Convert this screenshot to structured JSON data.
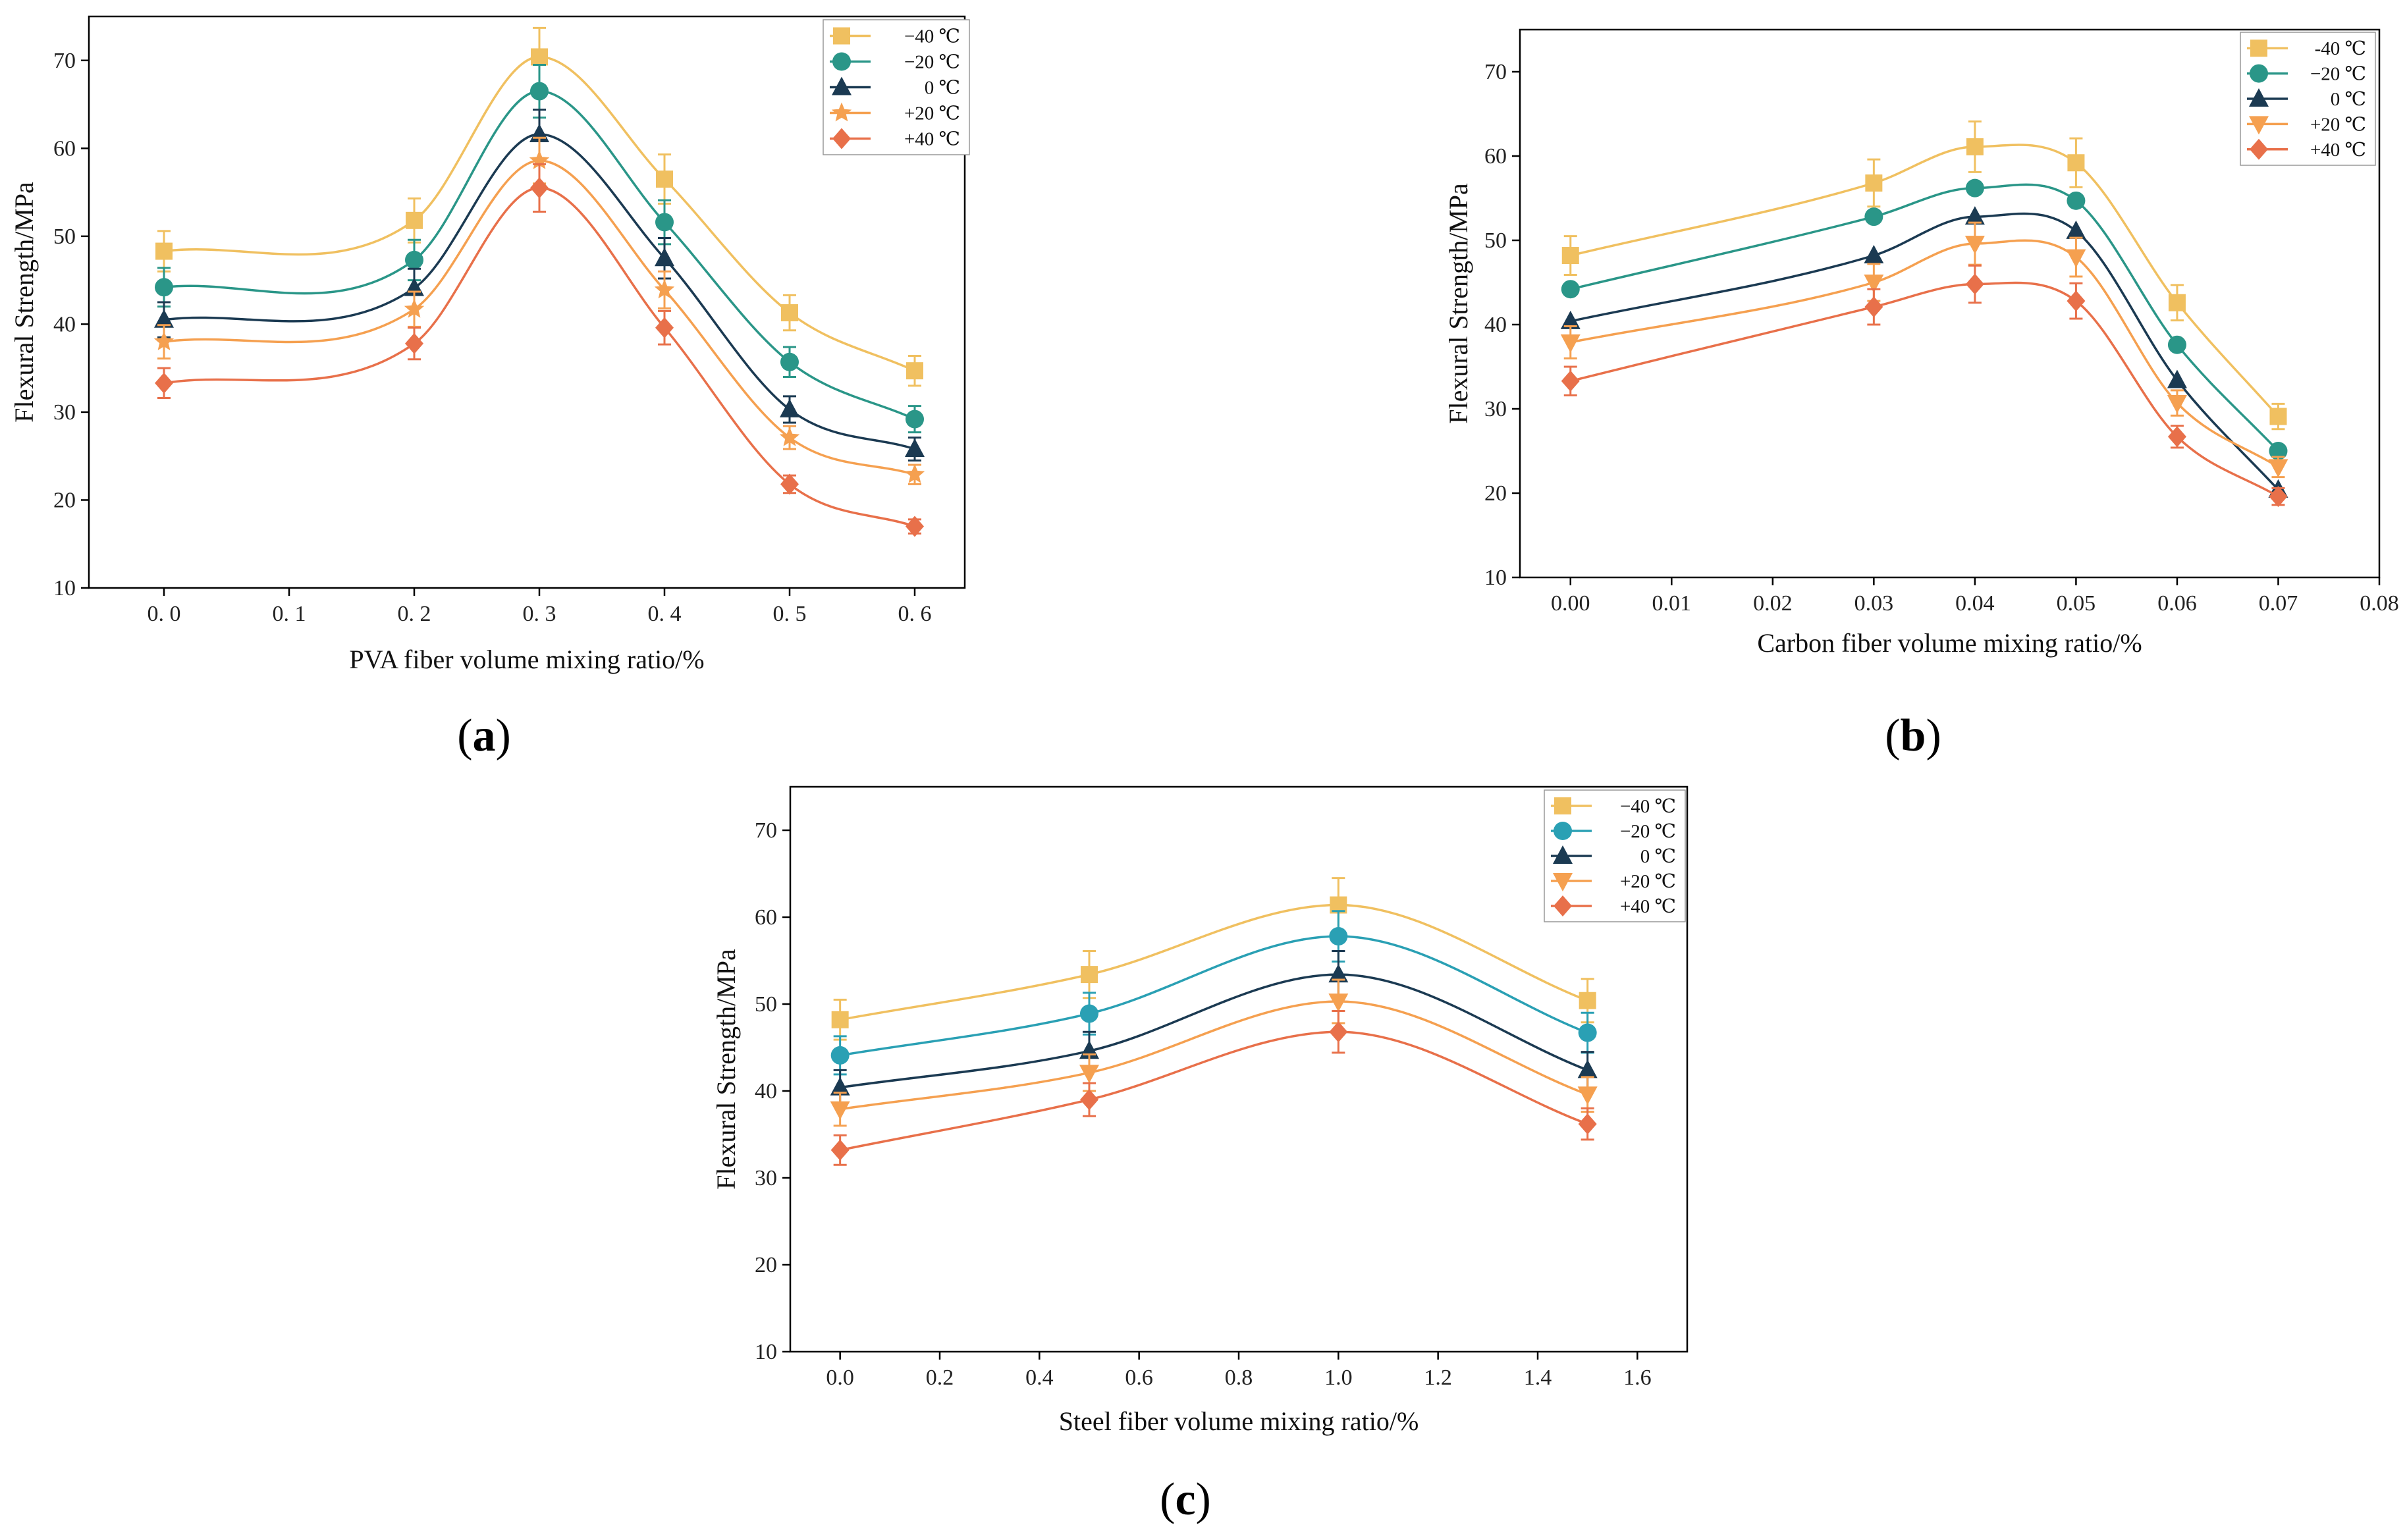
{
  "colors": {
    "-40": "#F0C060",
    "-20": "#2A9688",
    "-20c": "#2AA0B4",
    "0": "#1B3A52",
    "+20": "#F5A050",
    "+40": "#E8704A"
  },
  "chart_data": [
    {
      "id": "a",
      "type": "line",
      "panel_label": {
        "open": "(",
        "letter": "a",
        "close": ")"
      },
      "xlabel": "PVA fiber volume mixing ratio/%",
      "ylabel": "Flexural Strength/MPa",
      "xlim": [
        -0.06,
        0.64
      ],
      "ylim": [
        10,
        75
      ],
      "xticks": [
        0.0,
        0.1,
        0.2,
        0.3,
        0.4,
        0.5,
        0.6
      ],
      "xtick_labels": [
        "0. 0",
        "0. 1",
        "0. 2",
        "0. 3",
        "0. 4",
        "0. 5",
        "0. 6"
      ],
      "yticks": [
        10,
        20,
        30,
        40,
        50,
        60,
        70
      ],
      "ytick_labels": [
        "10",
        "20",
        "30",
        "40",
        "50",
        "60",
        "70"
      ],
      "legend_position": "top-right",
      "x": [
        0.0,
        0.2,
        0.3,
        0.4,
        0.5,
        0.6
      ],
      "series": [
        {
          "name": "−40 ℃",
          "color_key": "-40",
          "marker": "square",
          "values": [
            48.3,
            51.8,
            70.4,
            56.5,
            41.3,
            34.7
          ],
          "errors": [
            2.3,
            2.5,
            3.3,
            2.8,
            2.0,
            1.7
          ]
        },
        {
          "name": "−20 ℃",
          "color_key": "-20",
          "marker": "circle",
          "values": [
            44.2,
            47.3,
            66.5,
            51.6,
            35.7,
            29.2
          ],
          "errors": [
            2.2,
            2.3,
            3.0,
            2.5,
            1.7,
            1.5
          ]
        },
        {
          "name": "0 ℃",
          "color_key": "0",
          "marker": "triangle-up",
          "values": [
            40.5,
            44.1,
            61.6,
            47.5,
            30.3,
            25.8
          ],
          "errors": [
            2.0,
            2.2,
            2.8,
            2.3,
            1.5,
            1.3
          ]
        },
        {
          "name": "+20 ℃",
          "color_key": "+20",
          "marker": "star",
          "values": [
            38.0,
            41.7,
            58.6,
            43.9,
            27.1,
            22.9
          ],
          "errors": [
            1.9,
            2.0,
            2.6,
            2.1,
            1.3,
            1.1
          ]
        },
        {
          "name": "+40 ℃",
          "color_key": "+40",
          "marker": "diamond",
          "values": [
            33.3,
            37.8,
            55.5,
            39.6,
            21.8,
            17.0
          ],
          "errors": [
            1.7,
            1.8,
            2.7,
            1.9,
            1.0,
            0.8
          ]
        }
      ]
    },
    {
      "id": "b",
      "type": "line",
      "panel_label": {
        "open": "(",
        "letter": "b",
        "close": ")"
      },
      "xlabel": "Carbon fiber volume mixing ratio/%",
      "ylabel": "Flexural Strength/MPa",
      "xlim": [
        -0.005,
        0.08
      ],
      "ylim": [
        10,
        75
      ],
      "xticks": [
        0.0,
        0.01,
        0.02,
        0.03,
        0.04,
        0.05,
        0.06,
        0.07,
        0.08
      ],
      "xtick_labels": [
        "0.00",
        "0.01",
        "0.02",
        "0.03",
        "0.04",
        "0.05",
        "0.06",
        "0.07",
        "0.08"
      ],
      "yticks": [
        10,
        20,
        30,
        40,
        50,
        60,
        70
      ],
      "ytick_labels": [
        "10",
        "20",
        "30",
        "40",
        "50",
        "60",
        "70"
      ],
      "legend_position": "top-right",
      "x": [
        0.0,
        0.03,
        0.04,
        0.05,
        0.06,
        0.07
      ],
      "series": [
        {
          "name": "-40 ℃",
          "color_key": "-40",
          "marker": "square",
          "values": [
            48.2,
            56.8,
            61.1,
            59.2,
            42.6,
            29.1
          ],
          "errors": [
            2.3,
            2.8,
            3.0,
            2.9,
            2.1,
            1.5
          ]
        },
        {
          "name": "−20 ℃",
          "color_key": "-20",
          "marker": "circle",
          "values": [
            44.2,
            52.8,
            56.2,
            54.7,
            37.6,
            25.0
          ],
          "errors": [
            0,
            0,
            0,
            0,
            0,
            0
          ]
        },
        {
          "name": "0 ℃",
          "color_key": "0",
          "marker": "triangle-up",
          "values": [
            40.4,
            48.2,
            52.8,
            51.1,
            33.4,
            20.4
          ],
          "errors": [
            0,
            0,
            0,
            0,
            0,
            0
          ]
        },
        {
          "name": "+20 ℃",
          "color_key": "+20",
          "marker": "triangle-down",
          "values": [
            37.9,
            45.0,
            49.6,
            48.0,
            30.7,
            23.1
          ],
          "errors": [
            1.9,
            2.2,
            2.5,
            2.3,
            1.5,
            1.2
          ]
        },
        {
          "name": "+40 ℃",
          "color_key": "+40",
          "marker": "diamond",
          "values": [
            33.3,
            42.1,
            44.8,
            42.8,
            26.7,
            19.6
          ],
          "errors": [
            1.7,
            2.1,
            2.2,
            2.1,
            1.3,
            1.0
          ]
        }
      ]
    },
    {
      "id": "c",
      "type": "line",
      "panel_label": {
        "open": "(",
        "letter": "c",
        "close": ")"
      },
      "xlabel": "Steel fiber volume mixing ratio/%",
      "ylabel": "Flexural Strength/MPa",
      "xlim": [
        -0.1,
        1.7
      ],
      "ylim": [
        10,
        75
      ],
      "xticks": [
        0.0,
        0.2,
        0.4,
        0.6,
        0.8,
        1.0,
        1.2,
        1.4,
        1.6
      ],
      "xtick_labels": [
        "0.0",
        "0.2",
        "0.4",
        "0.6",
        "0.8",
        "1.0",
        "1.2",
        "1.4",
        "1.6"
      ],
      "yticks": [
        10,
        20,
        30,
        40,
        50,
        60,
        70
      ],
      "ytick_labels": [
        "10",
        "20",
        "30",
        "40",
        "50",
        "60",
        "70"
      ],
      "legend_position": "top-right",
      "x": [
        0.0,
        0.5,
        1.0,
        1.5
      ],
      "series": [
        {
          "name": "−40 ℃",
          "color_key": "-40",
          "marker": "square",
          "values": [
            48.2,
            53.4,
            61.4,
            50.4
          ],
          "errors": [
            2.3,
            2.7,
            3.1,
            2.5
          ]
        },
        {
          "name": "−20 ℃",
          "color_key": "-20c",
          "marker": "circle",
          "values": [
            44.1,
            48.9,
            57.8,
            46.7
          ],
          "errors": [
            2.2,
            2.4,
            2.9,
            2.3
          ]
        },
        {
          "name": "0 ℃",
          "color_key": "0",
          "marker": "triangle-up",
          "values": [
            40.4,
            44.6,
            53.4,
            42.4
          ],
          "errors": [
            2.0,
            2.2,
            2.7,
            2.1
          ]
        },
        {
          "name": "+20 ℃",
          "color_key": "+20",
          "marker": "triangle-down",
          "values": [
            37.9,
            42.1,
            50.3,
            39.6
          ],
          "errors": [
            1.9,
            2.1,
            2.5,
            2.0
          ]
        },
        {
          "name": "+40 ℃",
          "color_key": "+40",
          "marker": "diamond",
          "values": [
            33.2,
            39.0,
            46.8,
            36.2
          ],
          "errors": [
            1.7,
            1.9,
            2.4,
            1.8
          ]
        }
      ]
    }
  ]
}
